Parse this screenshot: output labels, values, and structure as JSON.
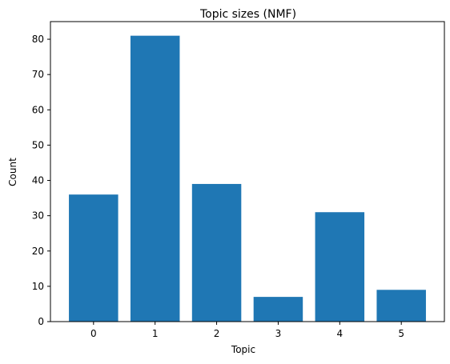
{
  "chart_data": {
    "type": "bar",
    "title": "Topic sizes (NMF)",
    "xlabel": "Topic",
    "ylabel": "Count",
    "categories": [
      "0",
      "1",
      "2",
      "3",
      "4",
      "5"
    ],
    "values": [
      36,
      81,
      39,
      7,
      31,
      9
    ],
    "ylim": [
      0,
      85
    ],
    "yticks": [
      0,
      10,
      20,
      30,
      40,
      50,
      60,
      70,
      80
    ],
    "grid": false,
    "bar_color": "#1f77b4"
  }
}
